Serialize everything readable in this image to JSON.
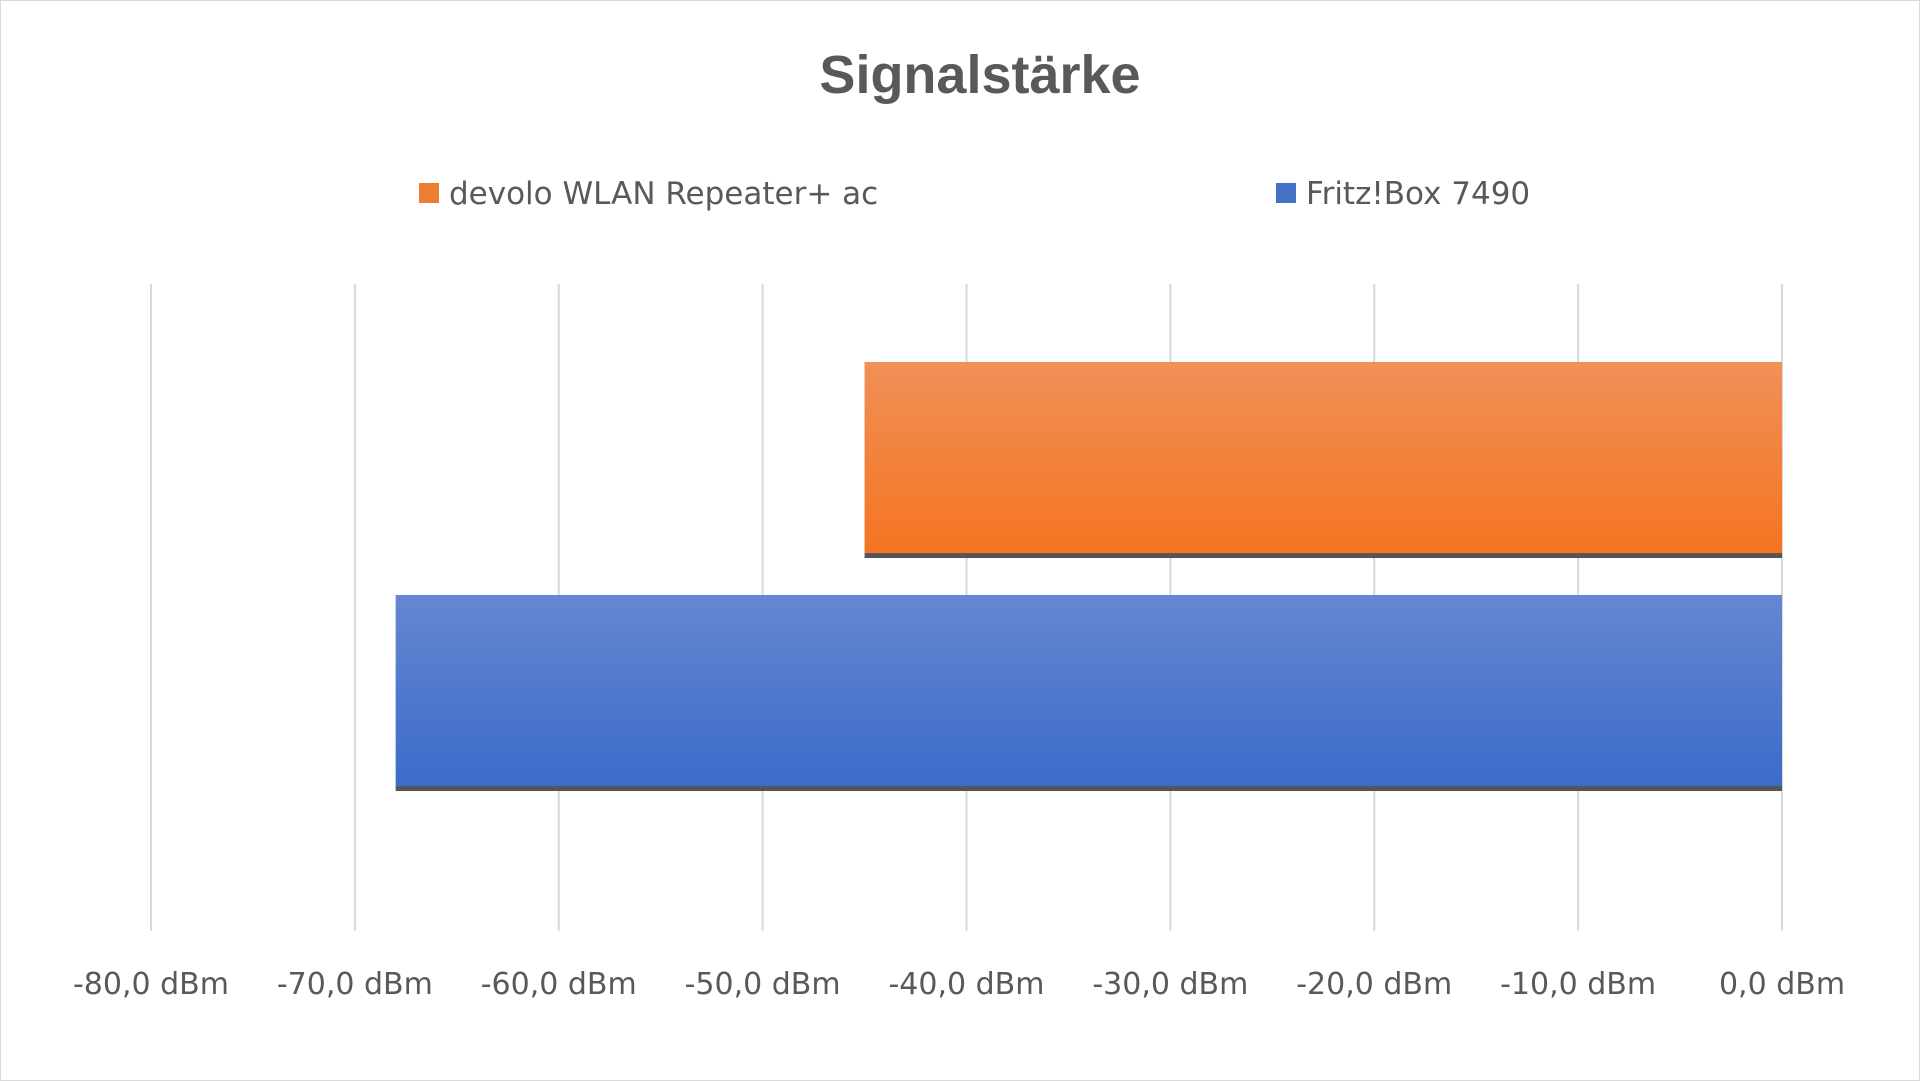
{
  "chart_data": {
    "type": "bar",
    "orientation": "horizontal",
    "title": "Signalstärke",
    "xlabel": "",
    "ylabel": "",
    "xlim": [
      -80,
      0
    ],
    "x_ticks": [
      -80,
      -70,
      -60,
      -50,
      -40,
      -30,
      -20,
      -10,
      0
    ],
    "x_tick_labels": [
      "-80,0 dBm",
      "-70,0 dBm",
      "-60,0 dBm",
      "-50,0 dBm",
      "-40,0 dBm",
      "-30,0 dBm",
      "-20,0 dBm",
      "-10,0 dBm",
      "0,0 dBm"
    ],
    "grid": true,
    "legend_position": "top",
    "series": [
      {
        "name": "devolo WLAN Repeater+ ac",
        "value": -45,
        "color": "#ed7d31"
      },
      {
        "name": "Fritz!Box 7490",
        "value": -68,
        "color": "#4472c4"
      }
    ]
  }
}
